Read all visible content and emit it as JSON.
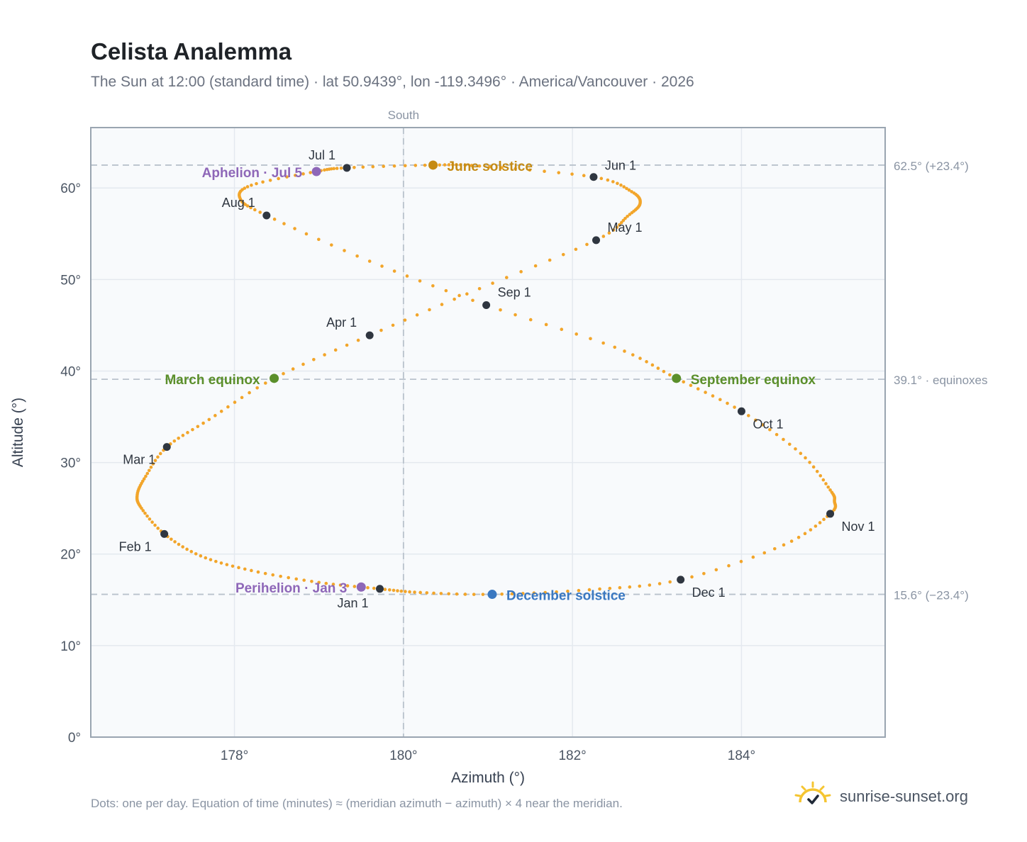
{
  "header": {
    "title": "Celista Analemma",
    "subtitle": "The Sun at 12:00 (standard time) · lat 50.9439°, lon -119.3496° · America/Vancouver · 2026"
  },
  "footer": {
    "note": "Dots: one per day. Equation of time (minutes) ≈ (meridian azimuth − azimuth) × 4 near the meridian.",
    "brand": "sunrise-sunset.org"
  },
  "colors": {
    "curve": "#f2a52a",
    "month_marker": "#2f3640",
    "june_solstice": "#c58b14",
    "december_solstice": "#3a78c1",
    "equinox": "#5b8f2b",
    "apsis": "#8e67b8",
    "plot_bg": "#f8fafc",
    "grid": "#e4e9ef",
    "reference_line": "#b9c2cc",
    "frame": "#9aa5b1",
    "icon": "#f5c531"
  },
  "chart_data": {
    "type": "scatter",
    "xlabel": "Azimuth (°)",
    "ylabel": "Altitude (°)",
    "xlim": [
      176.3,
      185.7
    ],
    "ylim": [
      0,
      66.6
    ],
    "x_ticks": [
      178,
      180,
      182,
      184
    ],
    "x_tick_labels": [
      "178°",
      "180°",
      "182°",
      "184°"
    ],
    "y_ticks": [
      0,
      10,
      20,
      30,
      40,
      50,
      60
    ],
    "y_tick_labels": [
      "0°",
      "10°",
      "20°",
      "30°",
      "40°",
      "50°",
      "60°"
    ],
    "grid": true,
    "meridian": {
      "azimuth": 180,
      "label": "South"
    },
    "reference_lines": [
      {
        "altitude": 62.5,
        "label": "62.5° (+23.4°)"
      },
      {
        "altitude": 39.1,
        "label": "39.1° · equinoxes"
      },
      {
        "altitude": 15.6,
        "label": "15.6° (−23.4°)"
      }
    ],
    "month_markers": [
      {
        "label": "Jan 1",
        "az": 179.72,
        "alt": 16.2
      },
      {
        "label": "Feb 1",
        "az": 177.17,
        "alt": 22.2
      },
      {
        "label": "Mar 1",
        "az": 177.2,
        "alt": 31.7
      },
      {
        "label": "Apr 1",
        "az": 179.6,
        "alt": 43.9
      },
      {
        "label": "May 1",
        "az": 182.28,
        "alt": 54.3
      },
      {
        "label": "Jun 1",
        "az": 182.25,
        "alt": 61.2
      },
      {
        "label": "Jul 1",
        "az": 179.33,
        "alt": 62.2
      },
      {
        "label": "Aug 1",
        "az": 178.38,
        "alt": 57.0
      },
      {
        "label": "Sep 1",
        "az": 180.98,
        "alt": 47.2
      },
      {
        "label": "Oct 1",
        "az": 184.0,
        "alt": 35.6
      },
      {
        "label": "Nov 1",
        "az": 185.05,
        "alt": 24.4
      },
      {
        "label": "Dec 1",
        "az": 183.28,
        "alt": 17.2
      }
    ],
    "events": [
      {
        "label": "June solstice",
        "az": 180.35,
        "alt": 62.5,
        "kind": "june_solstice"
      },
      {
        "label": "December solstice",
        "az": 181.05,
        "alt": 15.6,
        "kind": "december_solstice"
      },
      {
        "label": "March equinox",
        "az": 178.47,
        "alt": 39.2,
        "kind": "equinox"
      },
      {
        "label": "September equinox",
        "az": 183.23,
        "alt": 39.2,
        "kind": "equinox"
      },
      {
        "label": "Aphelion · Jul 5",
        "az": 178.97,
        "alt": 61.8,
        "kind": "apsis"
      },
      {
        "label": "Perihelion · Jan 3",
        "az": 179.5,
        "alt": 16.4,
        "kind": "apsis"
      }
    ],
    "daily_path": [
      [
        179.72,
        16.2
      ],
      [
        179.0,
        16.9
      ],
      [
        178.2,
        18.2
      ],
      [
        177.6,
        19.8
      ],
      [
        177.17,
        22.2
      ],
      [
        176.9,
        25.0
      ],
      [
        176.85,
        26.5
      ],
      [
        176.95,
        28.5
      ],
      [
        177.2,
        31.7
      ],
      [
        177.7,
        34.7
      ],
      [
        178.47,
        39.2
      ],
      [
        179.6,
        43.9
      ],
      [
        180.9,
        49.0
      ],
      [
        182.28,
        54.3
      ],
      [
        182.65,
        56.9
      ],
      [
        182.8,
        58.3
      ],
      [
        182.7,
        59.6
      ],
      [
        182.25,
        61.2
      ],
      [
        180.9,
        62.4
      ],
      [
        180.35,
        62.5
      ],
      [
        179.33,
        62.2
      ],
      [
        178.97,
        61.8
      ],
      [
        178.2,
        60.3
      ],
      [
        178.07,
        58.8
      ],
      [
        178.38,
        57.0
      ],
      [
        179.6,
        52.0
      ],
      [
        180.98,
        47.2
      ],
      [
        182.5,
        42.6
      ],
      [
        183.23,
        39.2
      ],
      [
        184.0,
        35.6
      ],
      [
        184.7,
        31.0
      ],
      [
        185.05,
        27.0
      ],
      [
        185.1,
        25.8
      ],
      [
        185.05,
        24.4
      ],
      [
        184.5,
        21.0
      ],
      [
        183.28,
        17.2
      ],
      [
        182.2,
        16.1
      ],
      [
        181.05,
        15.6
      ],
      [
        180.2,
        15.8
      ],
      [
        179.72,
        16.2
      ]
    ]
  }
}
